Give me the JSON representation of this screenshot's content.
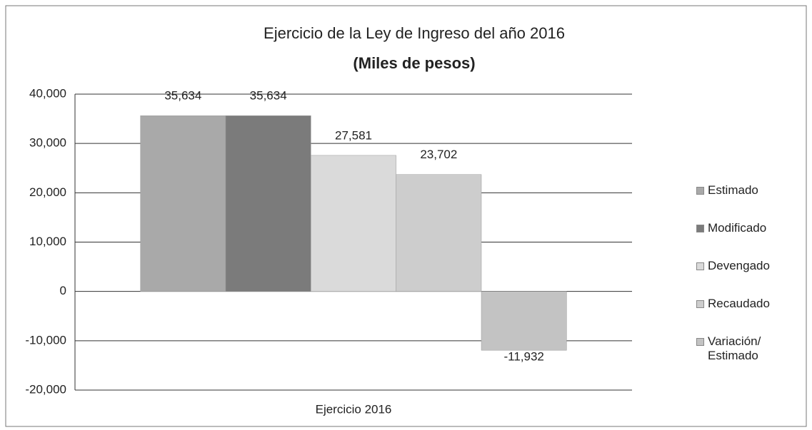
{
  "chart_data": {
    "type": "bar",
    "title": "Ejercicio de la Ley de Ingreso del año 2016",
    "subtitle": "(Miles de pesos)",
    "categories": [
      "Ejercicio 2016"
    ],
    "series": [
      {
        "name": "Estimado",
        "color": "#a9a9a9",
        "values": [
          35634
        ],
        "value_labels": [
          "35,634"
        ]
      },
      {
        "name": "Modificado",
        "color": "#7b7b7b",
        "values": [
          35634
        ],
        "value_labels": [
          "35,634"
        ]
      },
      {
        "name": "Devengado",
        "color": "#dadada",
        "values": [
          27581
        ],
        "value_labels": [
          "27,581"
        ]
      },
      {
        "name": "Recaudado",
        "color": "#cdcdcd",
        "values": [
          23702
        ],
        "value_labels": [
          "23,702"
        ]
      },
      {
        "name": "Variación/ Estimado",
        "color": "#c3c3c3",
        "values": [
          -11932
        ],
        "value_labels": [
          "-11,932"
        ]
      }
    ],
    "ylim": [
      -20000,
      40000
    ],
    "yticks": [
      {
        "value": -20000,
        "label": "-20,000"
      },
      {
        "value": -10000,
        "label": "-10,000"
      },
      0,
      {
        "value": 10000,
        "label": "10,000"
      },
      {
        "value": 20000,
        "label": "20,000"
      },
      {
        "value": 30000,
        "label": "30,000"
      },
      {
        "value": 40000,
        "label": "40,000"
      }
    ],
    "grid": true,
    "legend": "right"
  }
}
